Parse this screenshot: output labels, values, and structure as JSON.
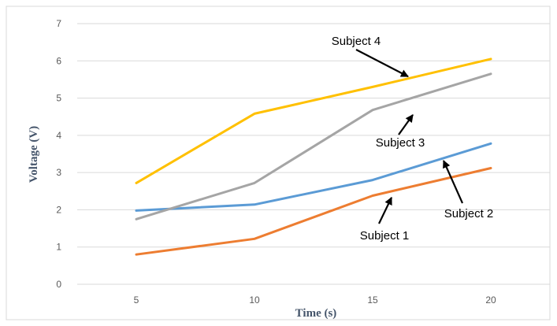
{
  "chart_data": {
    "type": "line",
    "title": "",
    "xlabel": "Time (s)",
    "ylabel": "Voltage (V)",
    "x": [
      5,
      10,
      15,
      20
    ],
    "xlim": [
      2.5,
      22.5
    ],
    "ylim": [
      0,
      7
    ],
    "yticks": [
      0,
      1,
      2,
      3,
      4,
      5,
      6,
      7
    ],
    "grid": "horizontal",
    "legend": "none",
    "series": [
      {
        "name": "Subject 1",
        "values": [
          0.8,
          1.22,
          2.38,
          3.12
        ],
        "color": "#ed7d31"
      },
      {
        "name": "Subject 2",
        "values": [
          1.98,
          2.14,
          2.8,
          3.78
        ],
        "color": "#5b9bd5"
      },
      {
        "name": "Subject 3",
        "values": [
          1.75,
          2.72,
          4.68,
          5.65
        ],
        "color": "#a5a5a5"
      },
      {
        "name": "Subject 4",
        "values": [
          2.72,
          4.58,
          5.3,
          6.05
        ],
        "color": "#ffc000"
      }
    ],
    "annotations": [
      {
        "text": "Subject 4",
        "series": "Subject 4",
        "x": 16.5,
        "y": 5.58
      },
      {
        "text": "Subject 3",
        "series": "Subject 3",
        "x": 16.7,
        "y": 4.55
      },
      {
        "text": "Subject 2",
        "series": "Subject 2",
        "x": 18.0,
        "y": 3.32
      },
      {
        "text": "Subject 1",
        "series": "Subject 1",
        "x": 15.8,
        "y": 2.33
      }
    ]
  }
}
